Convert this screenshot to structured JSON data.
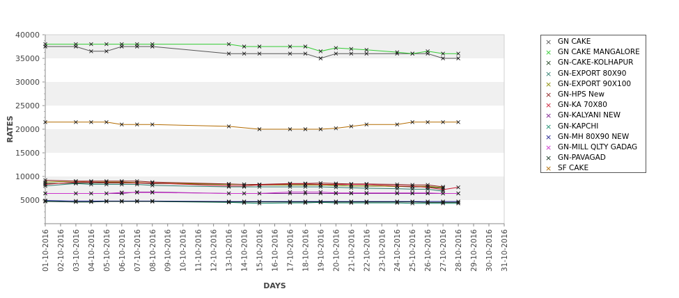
{
  "chart_data": {
    "type": "line",
    "xlabel": "DAYS",
    "ylabel": "RATES",
    "ylim": [
      0,
      40000
    ],
    "yticks": [
      5000,
      10000,
      15000,
      20000,
      25000,
      30000,
      35000,
      40000
    ],
    "x": [
      "01-10-2016",
      "02-10-2016",
      "03-10-2016",
      "04-10-2016",
      "05-10-2016",
      "06-10-2016",
      "07-10-2016",
      "08-10-2016",
      "09-10-2016",
      "10-10-2016",
      "11-10-2016",
      "12-10-2016",
      "13-10-2016",
      "14-10-2016",
      "15-10-2016",
      "16-10-2016",
      "17-10-2016",
      "18-10-2016",
      "19-10-2016",
      "20-10-2016",
      "21-10-2016",
      "22-10-2016",
      "23-10-2016",
      "24-10-2016",
      "25-10-2016",
      "26-10-2016",
      "27-10-2016",
      "28-10-2016",
      "29-10-2016",
      "30-10-2016",
      "31-10-2016"
    ],
    "grid": "alternating horizontal bands",
    "legend_position": "right",
    "marker": "×",
    "series": [
      {
        "name": "GN CAKE",
        "color": "#555555",
        "values": [
          37500,
          null,
          37500,
          36500,
          36500,
          37500,
          37500,
          37500,
          null,
          null,
          null,
          null,
          36000,
          36000,
          36000,
          null,
          36000,
          36000,
          35000,
          36000,
          36000,
          36000,
          null,
          36000,
          36000,
          36000,
          35000,
          35000,
          null,
          null,
          null
        ]
      },
      {
        "name": "GN CAKE MANGALORE",
        "color": "#33cc33",
        "values": [
          38000,
          null,
          38000,
          38000,
          38000,
          38000,
          38000,
          38000,
          null,
          null,
          null,
          null,
          38000,
          37500,
          37500,
          null,
          37500,
          37500,
          36500,
          37200,
          37000,
          36800,
          null,
          36300,
          36000,
          36500,
          36000,
          36000,
          null,
          null,
          null
        ]
      },
      {
        "name": "GN-CAKE-KOLHAPUR",
        "color": "#1a3d1a",
        "values": [
          8500,
          null,
          8600,
          8600,
          8600,
          8600,
          8600,
          8500,
          null,
          null,
          null,
          null,
          8300,
          8300,
          8200,
          null,
          8200,
          8200,
          8200,
          8100,
          8000,
          8000,
          null,
          7900,
          7800,
          7800,
          7500,
          null,
          null,
          null,
          null
        ]
      },
      {
        "name": "GN-EXPORT 80X90",
        "color": "#2e7d6e",
        "values": [
          8000,
          null,
          8500,
          8300,
          8300,
          8300,
          8300,
          8100,
          null,
          null,
          null,
          null,
          7800,
          7800,
          7800,
          null,
          7800,
          7800,
          7800,
          7700,
          7600,
          7500,
          null,
          7400,
          7300,
          7300,
          6900,
          null,
          null,
          null,
          null
        ]
      },
      {
        "name": "GN-EXPORT 90X100",
        "color": "#8c8c00",
        "values": [
          8800,
          null,
          9000,
          8800,
          8800,
          8800,
          8700,
          8600,
          null,
          null,
          null,
          null,
          8300,
          8300,
          8200,
          null,
          8200,
          8200,
          8200,
          8100,
          8000,
          8000,
          null,
          7900,
          7900,
          7900,
          7600,
          null,
          null,
          null,
          null
        ]
      },
      {
        "name": "GN-HPS New",
        "color": "#8b1a1a",
        "values": [
          9200,
          null,
          9000,
          9000,
          9000,
          9000,
          9000,
          8800,
          null,
          null,
          null,
          null,
          8400,
          8300,
          8300,
          null,
          8500,
          8500,
          8600,
          8500,
          8400,
          8400,
          null,
          8300,
          8200,
          8200,
          7800,
          null,
          null,
          null,
          null
        ]
      },
      {
        "name": "GN-KA 70X80",
        "color": "#cc1a33",
        "values": [
          8300,
          null,
          8800,
          8800,
          8700,
          8700,
          8600,
          8600,
          null,
          null,
          null,
          null,
          8000,
          8000,
          8200,
          null,
          8400,
          8400,
          8300,
          8300,
          8300,
          8300,
          null,
          8000,
          7900,
          7700,
          7200,
          7700,
          null,
          null,
          null
        ]
      },
      {
        "name": "GN-KALYANI NEW",
        "color": "#7a1a8c",
        "values": [
          6400,
          null,
          6400,
          6400,
          6400,
          6400,
          6700,
          6700,
          null,
          null,
          null,
          null,
          6400,
          6400,
          6400,
          null,
          6400,
          6400,
          6400,
          6400,
          6400,
          6400,
          null,
          6400,
          6400,
          6400,
          6400,
          6400,
          null,
          null,
          null
        ]
      },
      {
        "name": "GN-KAPCHI",
        "color": "#1a8c6e",
        "values": [
          4800,
          null,
          4600,
          4600,
          4700,
          4700,
          4700,
          4700,
          null,
          null,
          null,
          null,
          4500,
          4400,
          4300,
          null,
          4400,
          4400,
          4500,
          4400,
          4400,
          4400,
          null,
          4400,
          4300,
          4300,
          4300,
          4300,
          null,
          null,
          null
        ]
      },
      {
        "name": "GN-MH 80X90 NEW",
        "color": "#1a1a8c",
        "values": [
          4900,
          null,
          4800,
          4800,
          4800,
          4800,
          4800,
          4800,
          null,
          null,
          null,
          null,
          4700,
          4700,
          4700,
          null,
          4700,
          4700,
          4700,
          4700,
          4700,
          4700,
          null,
          4700,
          4700,
          4700,
          4700,
          4700,
          null,
          null,
          null
        ]
      },
      {
        "name": "GN-MILL QLTY GADAG",
        "color": "#cc33cc",
        "values": [
          6400,
          null,
          6400,
          6400,
          6400,
          6600,
          6600,
          6600,
          null,
          null,
          null,
          null,
          6400,
          6400,
          6400,
          null,
          6700,
          6700,
          6700,
          6500,
          6500,
          6500,
          null,
          6500,
          6500,
          6500,
          6400,
          6400,
          null,
          null,
          null
        ]
      },
      {
        "name": "GN-PAVAGAD",
        "color": "#0d2e1a",
        "values": [
          4700,
          null,
          4600,
          4600,
          4700,
          4700,
          4700,
          4700,
          null,
          null,
          null,
          null,
          4600,
          4600,
          4600,
          null,
          4600,
          4600,
          4600,
          4600,
          4600,
          4600,
          null,
          4600,
          4600,
          4500,
          4500,
          4500,
          null,
          null,
          null
        ]
      },
      {
        "name": "SF CAKE",
        "color": "#b36b00",
        "values": [
          21500,
          null,
          21500,
          21500,
          21500,
          21000,
          21000,
          21000,
          null,
          null,
          null,
          null,
          20600,
          null,
          20000,
          null,
          20000,
          20000,
          20000,
          20200,
          20600,
          21000,
          null,
          21000,
          21500,
          21500,
          21500,
          21500,
          null,
          null,
          null
        ]
      }
    ]
  }
}
